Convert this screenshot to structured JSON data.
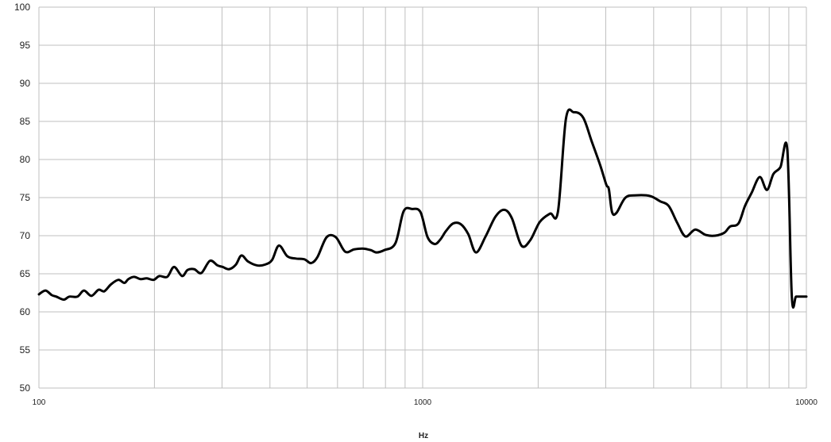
{
  "chart_data": {
    "type": "line",
    "title": "",
    "xlabel": "Hz",
    "ylabel": "",
    "xscale": "log",
    "xlim": [
      100,
      10000
    ],
    "ylim": [
      50,
      100
    ],
    "grid": true,
    "legend": "none",
    "y_ticks": [
      50,
      55,
      60,
      65,
      70,
      75,
      80,
      85,
      90,
      95,
      100
    ],
    "x_tick_labels": [
      {
        "value": 100,
        "label": "100"
      },
      {
        "value": 1000,
        "label": "1000"
      },
      {
        "value": 10000,
        "label": "10000"
      }
    ],
    "x_minor_grid": [
      200,
      300,
      400,
      500,
      600,
      700,
      800,
      900,
      2000,
      3000,
      4000,
      5000,
      6000,
      7000,
      8000,
      9000
    ],
    "colors": {
      "line": "#000000",
      "grid": "#bfbfbf"
    },
    "series": [
      {
        "x": [
          100,
          104,
          108,
          111,
          116,
          120,
          126,
          131,
          137,
          143,
          148,
          154,
          161,
          167,
          171,
          177,
          184,
          191,
          199,
          206,
          216,
          225,
          236,
          244,
          254,
          265,
          279,
          292,
          301,
          313,
          326,
          337,
          351,
          370,
          388,
          405,
          422,
          444,
          467,
          492,
          512,
          532,
          562,
          594,
          628,
          663,
          701,
          733,
          759,
          794,
          849,
          892,
          938,
          987,
          1030,
          1075,
          1112,
          1150,
          1200,
          1258,
          1315,
          1377,
          1459,
          1548,
          1631,
          1708,
          1809,
          1907,
          2019,
          2148,
          2253,
          2362,
          2478,
          2620,
          2757,
          2900,
          3010,
          3057,
          3116,
          3200,
          3378,
          3607,
          3917,
          4163,
          4378,
          4606,
          4840,
          5131,
          5466,
          5785,
          6116,
          6325,
          6652,
          6918,
          7196,
          7558,
          7893,
          8205,
          8558,
          8918,
          9164,
          9397,
          9684,
          10000
        ],
        "y": [
          62.3,
          62.8,
          62.2,
          62.0,
          61.6,
          62.0,
          62.0,
          62.8,
          62.1,
          62.9,
          62.7,
          63.6,
          64.2,
          63.8,
          64.3,
          64.6,
          64.3,
          64.4,
          64.2,
          64.7,
          64.6,
          65.9,
          64.7,
          65.5,
          65.6,
          65.1,
          66.7,
          66.1,
          65.9,
          65.6,
          66.2,
          67.4,
          66.6,
          66.1,
          66.2,
          66.8,
          68.7,
          67.3,
          67.0,
          66.9,
          66.4,
          67.2,
          69.8,
          69.8,
          67.9,
          68.2,
          68.3,
          68.1,
          67.8,
          68.1,
          69.0,
          73.2,
          73.5,
          73.1,
          69.8,
          68.9,
          69.5,
          70.6,
          71.6,
          71.5,
          70.2,
          67.8,
          69.9,
          72.5,
          73.4,
          72.3,
          68.7,
          69.4,
          71.8,
          72.9,
          73.2,
          85.3,
          86.2,
          85.5,
          82.4,
          79.3,
          76.7,
          76.1,
          73.1,
          73.0,
          75.0,
          75.3,
          75.2,
          74.5,
          73.9,
          71.7,
          69.9,
          70.8,
          70.1,
          70.0,
          70.4,
          71.2,
          71.6,
          73.9,
          75.6,
          77.7,
          76.0,
          78.1,
          79.0,
          81.3,
          62.0,
          62.0,
          62.0,
          62.0
        ]
      }
    ]
  }
}
